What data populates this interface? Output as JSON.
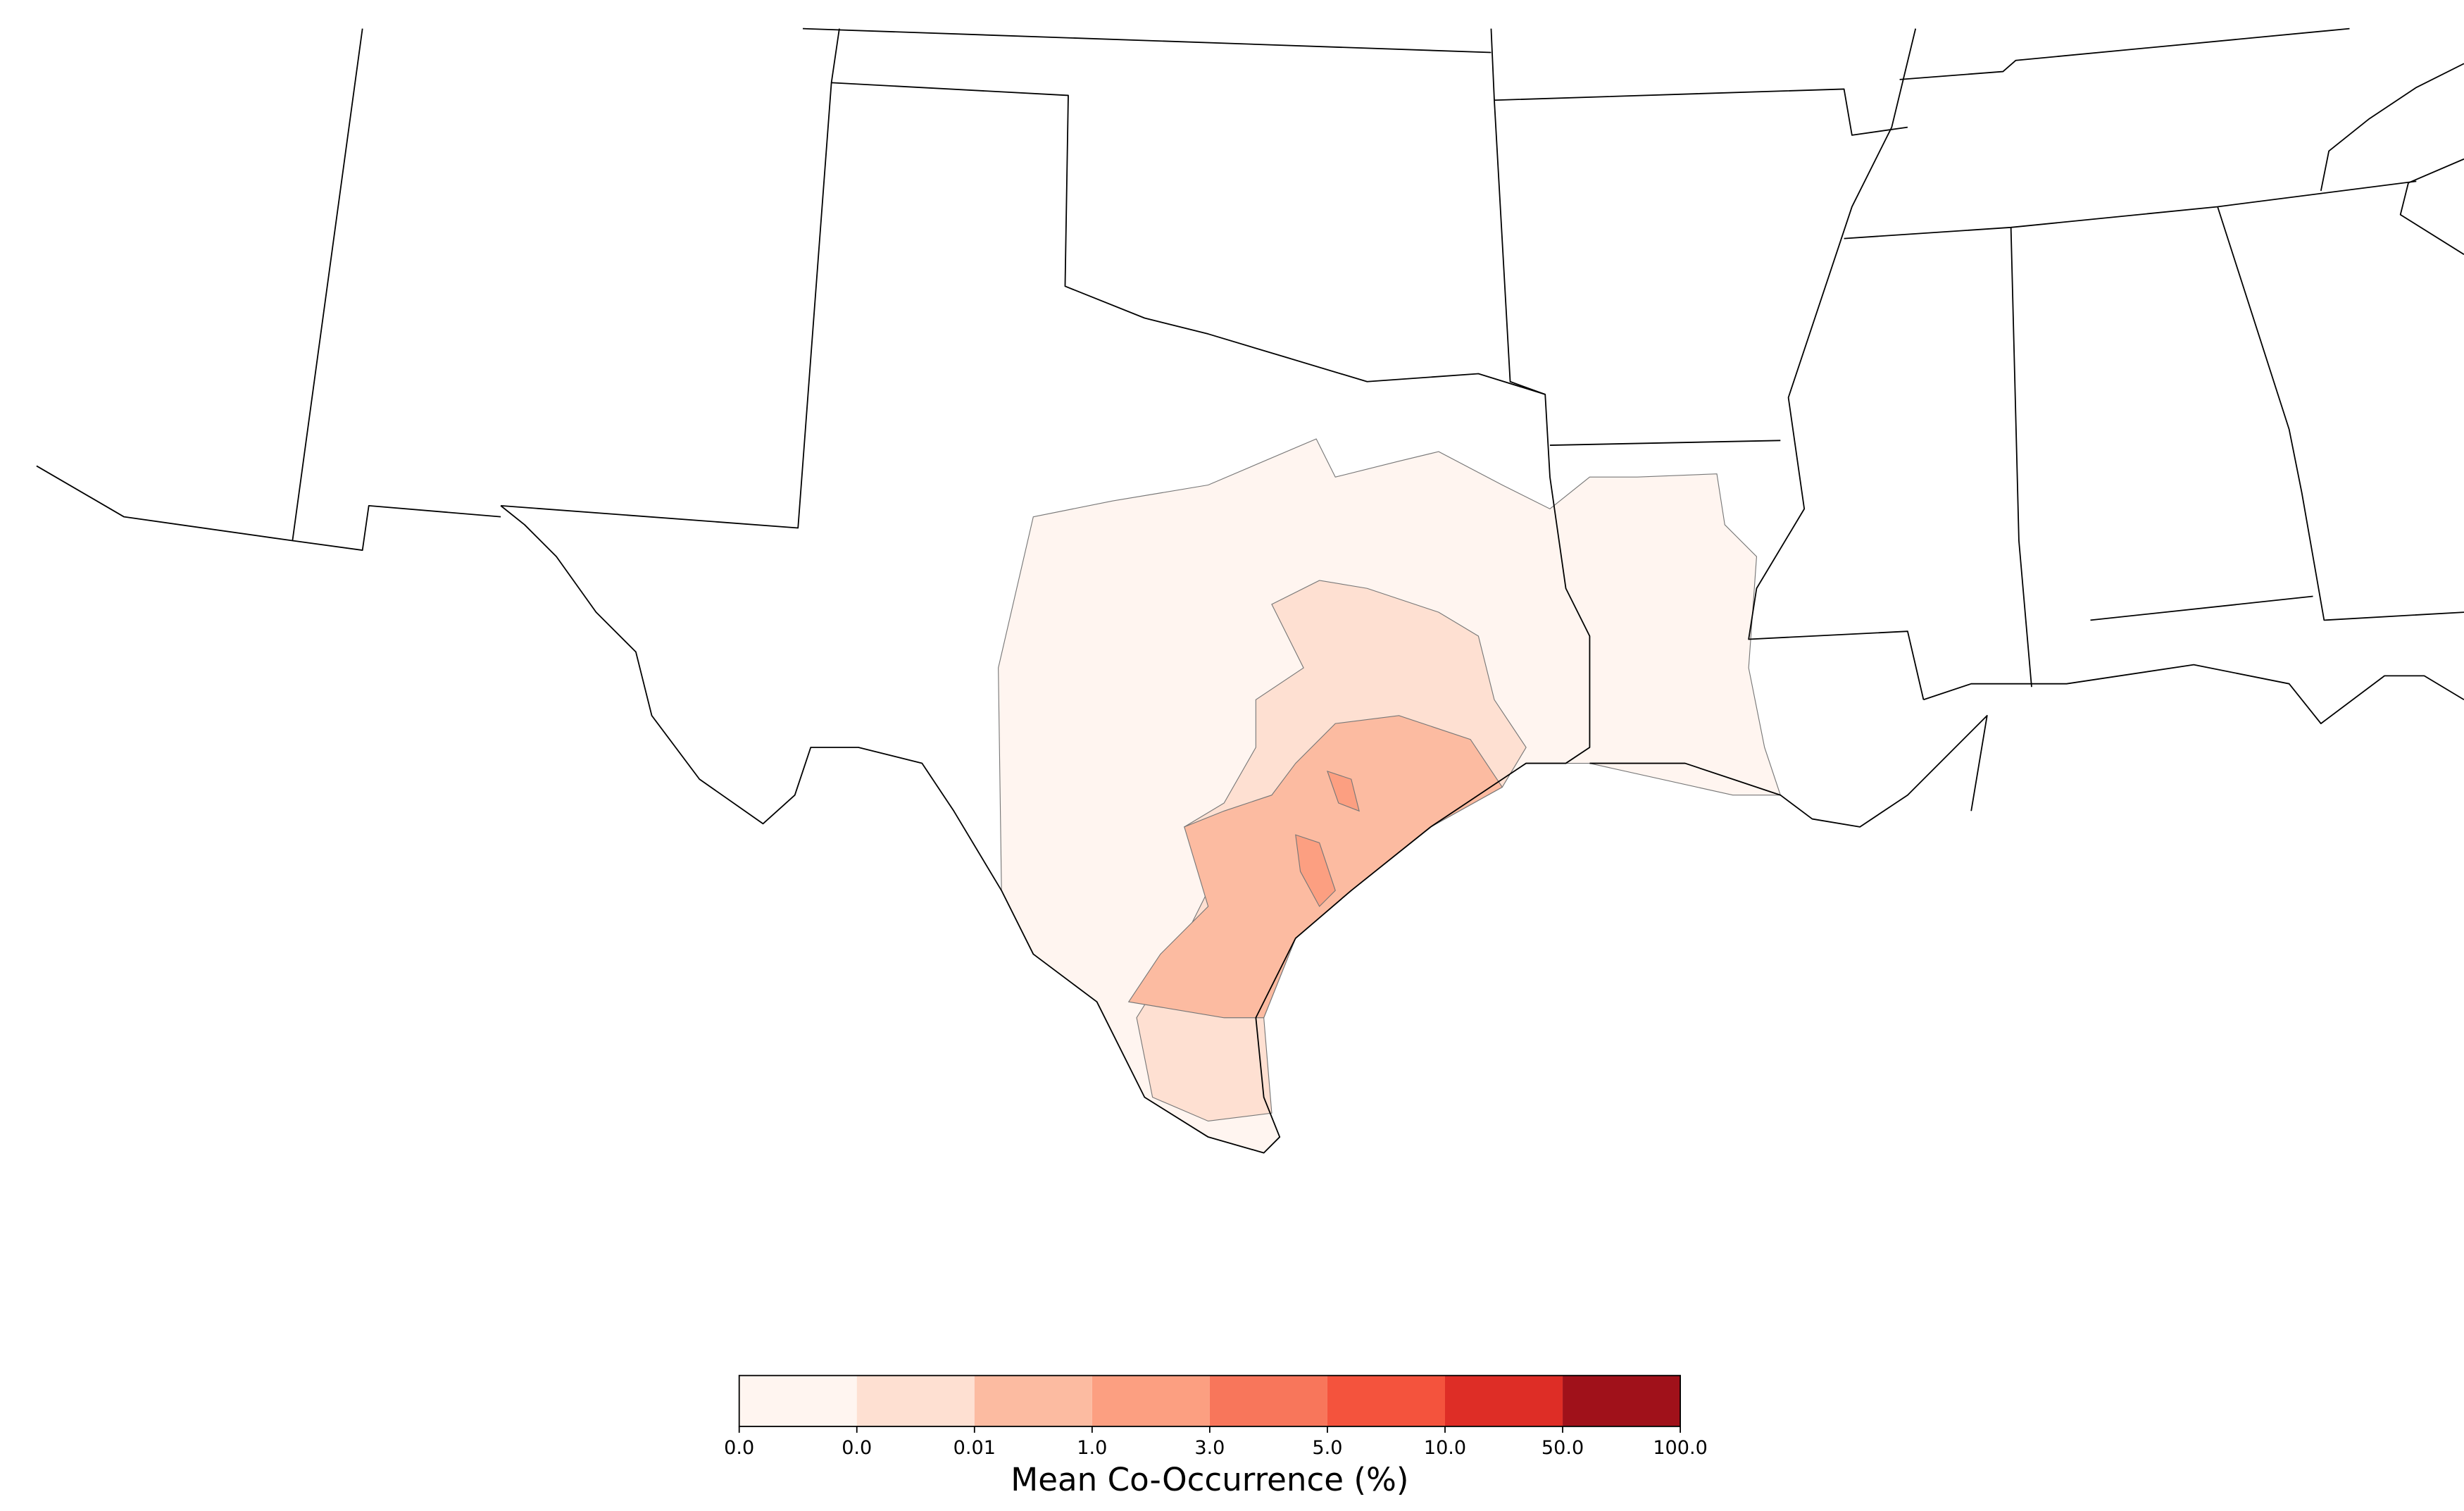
{
  "colorbar": {
    "label": "Mean Co-Occurrence (%)",
    "ticks": [
      "0.0",
      "0.0",
      "0.01",
      "1.0",
      "3.0",
      "5.0",
      "10.0",
      "50.0",
      "100.0"
    ],
    "colors": [
      "#fff5f0",
      "#fee0d2",
      "#fcbba1",
      "#fc9f81",
      "#f8765b",
      "#f4533d",
      "#de2d26",
      "#a0111a"
    ]
  }
}
